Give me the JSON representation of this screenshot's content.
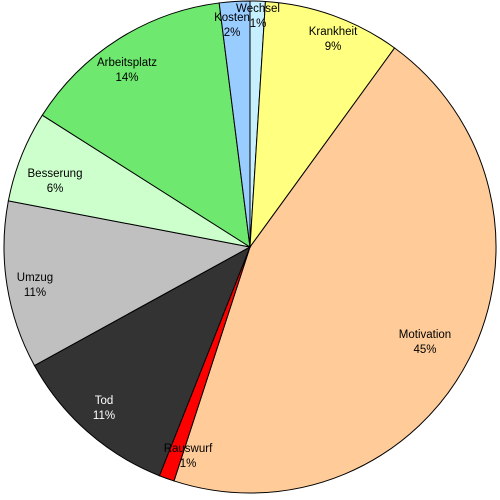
{
  "chart_data": {
    "type": "pie",
    "title": "",
    "slices": [
      {
        "label": "Wechsel",
        "value": 1,
        "pct": "1%",
        "color": "#c6f0ff",
        "text_color": "#000000"
      },
      {
        "label": "Krankheit",
        "value": 9,
        "pct": "9%",
        "color": "#ffff80",
        "text_color": "#000000"
      },
      {
        "label": "Motivation",
        "value": 45,
        "pct": "45%",
        "color": "#ffcc99",
        "text_color": "#000000"
      },
      {
        "label": "Rauswurf",
        "value": 1,
        "pct": "1%",
        "color": "#ff0000",
        "text_color": "#000000"
      },
      {
        "label": "Tod",
        "value": 11,
        "pct": "11%",
        "color": "#333333",
        "text_color": "#ffffff"
      },
      {
        "label": "Umzug",
        "value": 11,
        "pct": "11%",
        "color": "#c0c0c0",
        "text_color": "#000000"
      },
      {
        "label": "Besserung",
        "value": 6,
        "pct": "6%",
        "color": "#ccffcc",
        "text_color": "#000000"
      },
      {
        "label": "Arbeitsplatz",
        "value": 14,
        "pct": "14%",
        "color": "#6ee86e",
        "text_color": "#000000"
      },
      {
        "label": "Kosten",
        "value": 2,
        "pct": "2%",
        "color": "#99ccff",
        "text_color": "#000000"
      }
    ]
  }
}
